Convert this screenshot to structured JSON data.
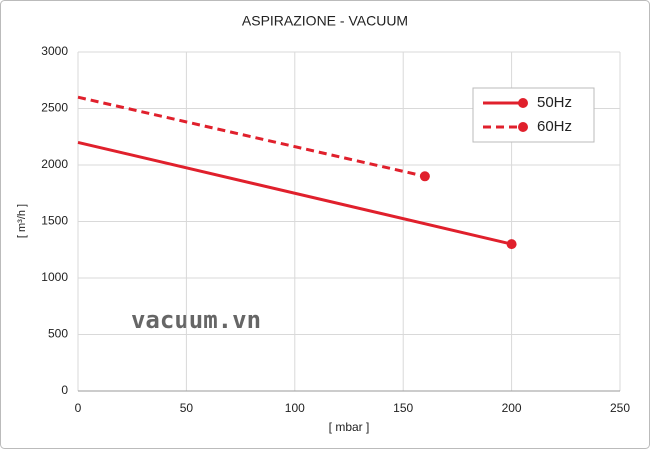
{
  "chart_data": {
    "type": "line",
    "title": "ASPIRAZIONE - VACUUM",
    "x_label": "[ mbar ]",
    "y_label": "[ m³/h ]",
    "annotation": "vacuum.vn",
    "xlim": [
      0,
      250
    ],
    "xticks": [
      0,
      50,
      100,
      150,
      200,
      250
    ],
    "ylim": [
      0,
      3000
    ],
    "yticks": [
      0,
      500,
      1000,
      1500,
      2000,
      2500,
      3000
    ],
    "grid": true,
    "legend": "upper right",
    "series": [
      {
        "name": "50Hz",
        "color": "#e0202c",
        "linestyle": "solid",
        "x": [
          0,
          200
        ],
        "values": [
          2200,
          1300
        ]
      },
      {
        "name": "60Hz",
        "color": "#e0202c",
        "linestyle": "dashed",
        "x": [
          0,
          160
        ],
        "values": [
          2600,
          1900
        ]
      }
    ]
  }
}
